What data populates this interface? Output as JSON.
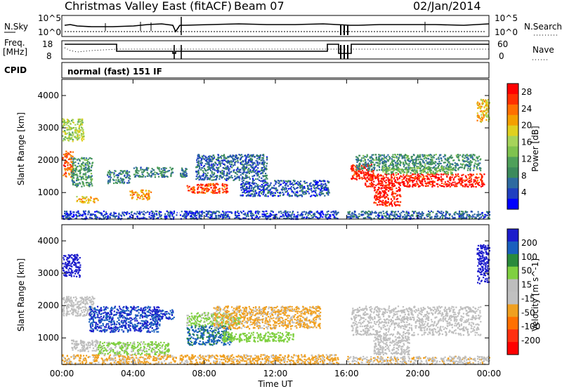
{
  "header": {
    "station": "Christmas Valley East (fitACF)",
    "beam": "Beam 07",
    "date": "02/Jan/2014"
  },
  "panels": {
    "nsky_label": "N.Sky",
    "nsearch_label": "N.Search",
    "nsky_ticks": [
      "10^5",
      "10^0"
    ],
    "nsearch_ticks": [
      "10^5",
      "10^0"
    ],
    "freq_label_1": "Freq.",
    "freq_label_2": "[MHz]",
    "freq_ticks": [
      "18",
      "8"
    ],
    "nave_label": "Nave",
    "nave_ticks": [
      "60",
      "0"
    ],
    "cpid_label": "CPID",
    "cpid_value": "normal (fast) 151 IF"
  },
  "colors": {
    "power": [
      "#0000ff",
      "#1f3fc0",
      "#2e6aa0",
      "#3c8a5c",
      "#4fa05a",
      "#7fc24e",
      "#a6d35a",
      "#e0d020",
      "#f4a000",
      "#ff7000",
      "#ff3000",
      "#ff0000"
    ],
    "velocity": [
      "#1c1ccc",
      "#1a5fbe",
      "#2a8a3c",
      "#7fd040",
      "#bdbdbd",
      "#c0c0c0",
      "#f0a020",
      "#ff7000",
      "#ff3010",
      "#ff0000"
    ]
  },
  "chart_data": [
    {
      "type": "heatmap",
      "name_printed": "",
      "xlabel": "Time UT",
      "ylabel": "Slant Range [km]",
      "xticks": [
        "00:00",
        "04:00",
        "08:00",
        "12:00",
        "16:00",
        "20:00",
        "00:00"
      ],
      "xlim": [
        0,
        24
      ],
      "yticks": [
        "1000",
        "2000",
        "3000",
        "4000"
      ],
      "ylim": [
        180,
        4500
      ],
      "colorbar": {
        "label": "Power [dB]",
        "ticks": [
          "4",
          "8",
          "12",
          "16",
          "20",
          "24",
          "28"
        ],
        "range": [
          0,
          30
        ]
      },
      "regions": [
        {
          "t": [
            0.0,
            0.6
          ],
          "r": [
            1500,
            2300
          ],
          "level": 24
        },
        {
          "t": [
            0.0,
            1.2
          ],
          "r": [
            2600,
            3300
          ],
          "level": 16
        },
        {
          "t": [
            0.5,
            1.7
          ],
          "r": [
            1200,
            2100
          ],
          "level": 10
        },
        {
          "t": [
            0.8,
            2.0
          ],
          "r": [
            700,
            900
          ],
          "level": 20
        },
        {
          "t": [
            2.5,
            3.8
          ],
          "r": [
            1300,
            1700
          ],
          "level": 8
        },
        {
          "t": [
            3.8,
            5.0
          ],
          "r": [
            800,
            1100
          ],
          "level": 22
        },
        {
          "t": [
            4.0,
            6.2
          ],
          "r": [
            1500,
            1800
          ],
          "level": 8
        },
        {
          "t": [
            6.6,
            7.0
          ],
          "r": [
            1500,
            1800
          ],
          "level": 8
        },
        {
          "t": [
            7.0,
            9.3
          ],
          "r": [
            1000,
            1300
          ],
          "level": 26
        },
        {
          "t": [
            7.5,
            11.5
          ],
          "r": [
            1400,
            2200
          ],
          "level": 6
        },
        {
          "t": [
            10.0,
            15.0
          ],
          "r": [
            900,
            1400
          ],
          "level": 5
        },
        {
          "t": [
            16.2,
            17.5
          ],
          "r": [
            1400,
            1900
          ],
          "level": 28
        },
        {
          "t": [
            17.5,
            19.0
          ],
          "r": [
            600,
            1200
          ],
          "level": 28
        },
        {
          "t": [
            17.0,
            23.7
          ],
          "r": [
            1200,
            1600
          ],
          "level": 28
        },
        {
          "t": [
            16.5,
            23.5
          ],
          "r": [
            1700,
            2200
          ],
          "level": 9
        },
        {
          "t": [
            18.0,
            22.0
          ],
          "r": [
            1600,
            1800
          ],
          "level": 13
        },
        {
          "t": [
            23.3,
            24.0
          ],
          "r": [
            3200,
            3900
          ],
          "level": 20
        },
        {
          "t": [
            0.0,
            15.5
          ],
          "r": [
            200,
            450
          ],
          "level": 4
        },
        {
          "t": [
            16.0,
            24.0
          ],
          "r": [
            200,
            450
          ],
          "level": 6
        }
      ]
    },
    {
      "type": "heatmap",
      "name_printed": "",
      "xlabel": "Time UT",
      "ylabel": "Slant Range [km]",
      "xticks": [
        "00:00",
        "04:00",
        "08:00",
        "12:00",
        "16:00",
        "20:00",
        "00:00"
      ],
      "xlim": [
        0,
        24
      ],
      "yticks": [
        "1000",
        "2000",
        "3000",
        "4000"
      ],
      "ylim": [
        180,
        4500
      ],
      "colorbar": {
        "label": "Velocity [m s^-1]",
        "ticks": [
          "200",
          "100",
          "50",
          "15",
          "-15",
          "-50",
          "-100",
          "-200"
        ],
        "range": [
          -250,
          250
        ]
      },
      "regions": [
        {
          "t": [
            0.0,
            1.0
          ],
          "r": [
            2900,
            3600
          ],
          "level": 230
        },
        {
          "t": [
            0.0,
            1.8
          ],
          "r": [
            1700,
            2300
          ],
          "level": 0
        },
        {
          "t": [
            0.5,
            2.0
          ],
          "r": [
            600,
            950
          ],
          "level": 30
        },
        {
          "t": [
            1.5,
            5.5
          ],
          "r": [
            1200,
            2000
          ],
          "level": 200
        },
        {
          "t": [
            2.0,
            6.0
          ],
          "r": [
            500,
            900
          ],
          "level": 60
        },
        {
          "t": [
            5.0,
            6.3
          ],
          "r": [
            1600,
            1900
          ],
          "level": 200
        },
        {
          "t": [
            7.0,
            9.5
          ],
          "r": [
            800,
            1400
          ],
          "level": 160
        },
        {
          "t": [
            7.0,
            10.0
          ],
          "r": [
            1400,
            1800
          ],
          "level": 60
        },
        {
          "t": [
            8.5,
            14.5
          ],
          "r": [
            1300,
            2000
          ],
          "level": -60
        },
        {
          "t": [
            9.0,
            13.0
          ],
          "r": [
            900,
            1200
          ],
          "level": 70
        },
        {
          "t": [
            16.2,
            23.5
          ],
          "r": [
            1100,
            2000
          ],
          "level": 0
        },
        {
          "t": [
            17.5,
            19.5
          ],
          "r": [
            500,
            1100
          ],
          "level": 0
        },
        {
          "t": [
            23.3,
            24.0
          ],
          "r": [
            2700,
            3900
          ],
          "level": 220
        },
        {
          "t": [
            0.0,
            15.5
          ],
          "r": [
            200,
            500
          ],
          "level": -60
        },
        {
          "t": [
            16.0,
            24.0
          ],
          "r": [
            200,
            450
          ],
          "level": -40
        }
      ]
    }
  ]
}
